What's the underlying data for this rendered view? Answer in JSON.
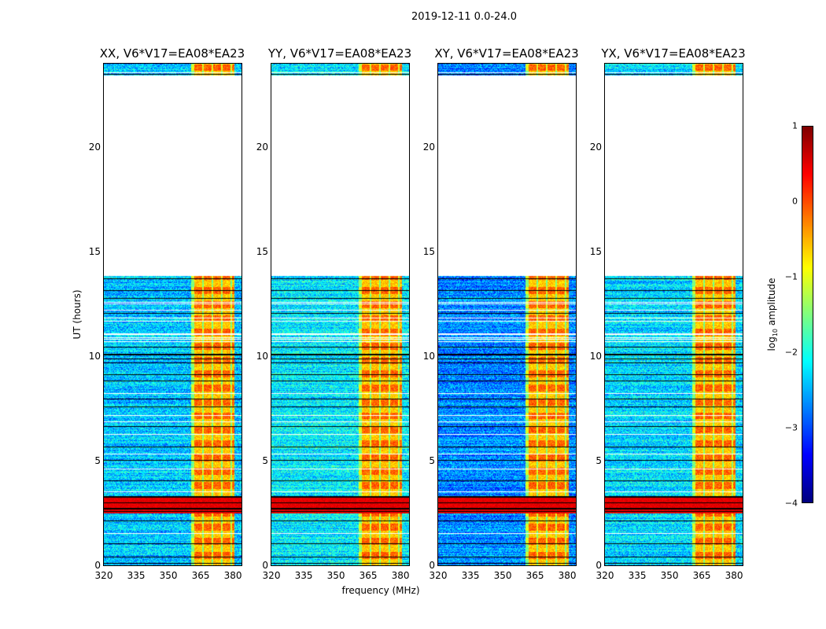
{
  "chart_data": {
    "type": "heatmap",
    "title": "2019-12-11 0.0-24.0",
    "xlabel": "frequency (MHz)",
    "ylabel": "UT (hours)",
    "xlim": [
      320,
      384
    ],
    "ylim": [
      0,
      24
    ],
    "xticks": [
      "320",
      "335",
      "350",
      "365",
      "380"
    ],
    "xtick_values": [
      320,
      335,
      350,
      365,
      380
    ],
    "yticks": [
      "0",
      "5",
      "10",
      "15",
      "20"
    ],
    "ytick_values": [
      0,
      5,
      10,
      15,
      20
    ],
    "colorbar": {
      "label_main": "log",
      "label_sub": "10",
      "label_rest": " amplitude",
      "range": [
        -4,
        1
      ],
      "ticks": [
        "1",
        "0",
        "−1",
        "−2",
        "−3",
        "−4"
      ],
      "tick_values": [
        1,
        0,
        -1,
        -2,
        -3,
        -4
      ],
      "colormap": "jet"
    },
    "panels": [
      {
        "title": "XX, V6*V17=EA08*EA23",
        "baseline_log": -2.4
      },
      {
        "title": "YY, V6*V17=EA08*EA23",
        "baseline_log": -2.2
      },
      {
        "title": "XY, V6*V17=EA08*EA23",
        "baseline_log": -2.7
      },
      {
        "title": "YX, V6*V17=EA08*EA23",
        "baseline_log": -2.3
      }
    ],
    "no_data_hours": [
      [
        13.85,
        23.45
      ]
    ],
    "rfi_band_mhz": [
      360.5,
      380.5
    ],
    "rfi_band_log": -0.5,
    "broadband_rfi_hours": [
      2.5,
      3.25
    ],
    "broadband_rfi_log": 0.5
  }
}
